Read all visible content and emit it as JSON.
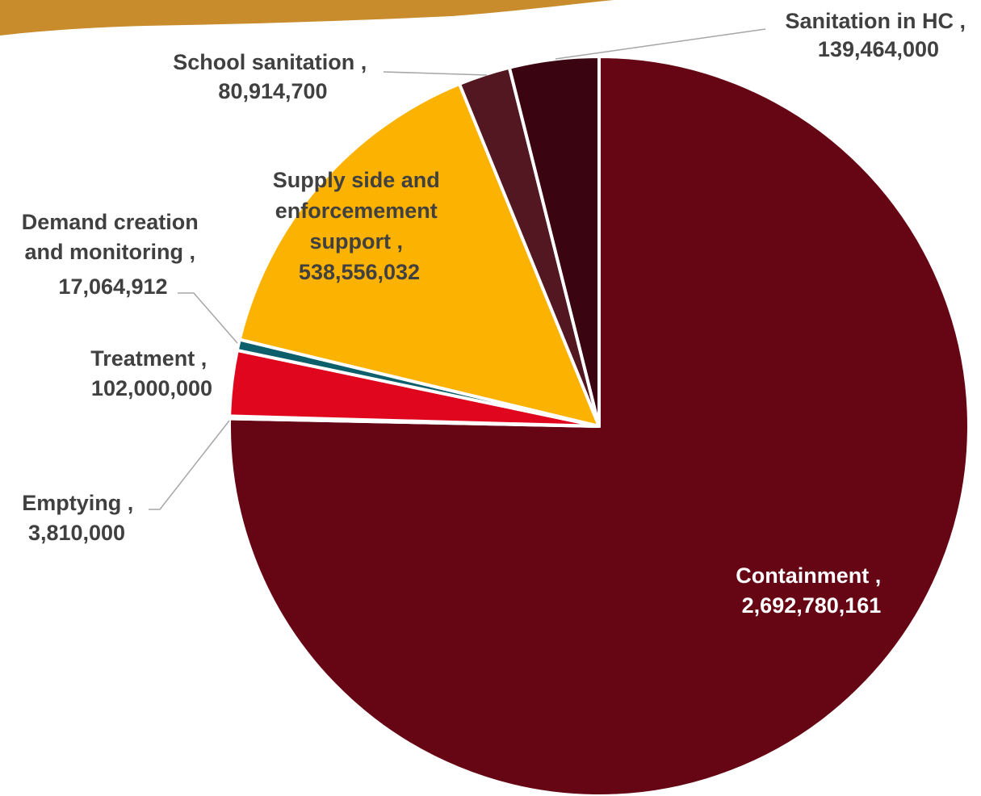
{
  "chart_data": {
    "type": "pie",
    "start_angle_deg": 0,
    "direction": "clockwise",
    "slices": [
      {
        "key": "containment",
        "label": "Containment",
        "value": 2692780161,
        "value_text": "2,692,780,161",
        "color": "#660514"
      },
      {
        "key": "emptying",
        "label": "Emptying",
        "value": 3810000,
        "value_text": "3,810,000",
        "color": "#660514"
      },
      {
        "key": "treatment",
        "label": "Treatment",
        "value": 102000000,
        "value_text": "102,000,000",
        "color": "#e0061e"
      },
      {
        "key": "demand",
        "label": "Demand creation and monitoring",
        "value": 17064912,
        "value_text": "17,064,912",
        "color": "#0d5f6b"
      },
      {
        "key": "supply",
        "label": "Supply side and enforcemement support",
        "value": 538556032,
        "value_text": "538,556,032",
        "color": "#fbb200"
      },
      {
        "key": "school",
        "label": "School sanitation",
        "value": 80914700,
        "value_text": "80,914,700",
        "color": "#521720"
      },
      {
        "key": "hc",
        "label": "Sanitation in HC",
        "value": 139464000,
        "value_text": "139,464,000",
        "color": "#3a0410"
      }
    ]
  },
  "labels": {
    "containment": [
      "Containment ,",
      "2,692,780,161"
    ],
    "emptying": [
      "Emptying ,",
      "3,810,000"
    ],
    "treatment": [
      "Treatment ,",
      "102,000,000"
    ],
    "demand": [
      "Demand creation",
      "and monitoring ,",
      "17,064,912"
    ],
    "supply": [
      "Supply side and",
      "enforcemement",
      "support ,",
      "538,556,032"
    ],
    "school": [
      "School sanitation ,",
      "80,914,700"
    ],
    "hc": [
      "Sanitation in HC ,",
      "139,464,000"
    ]
  },
  "decoration": {
    "brush_color": "#c88c2c"
  }
}
